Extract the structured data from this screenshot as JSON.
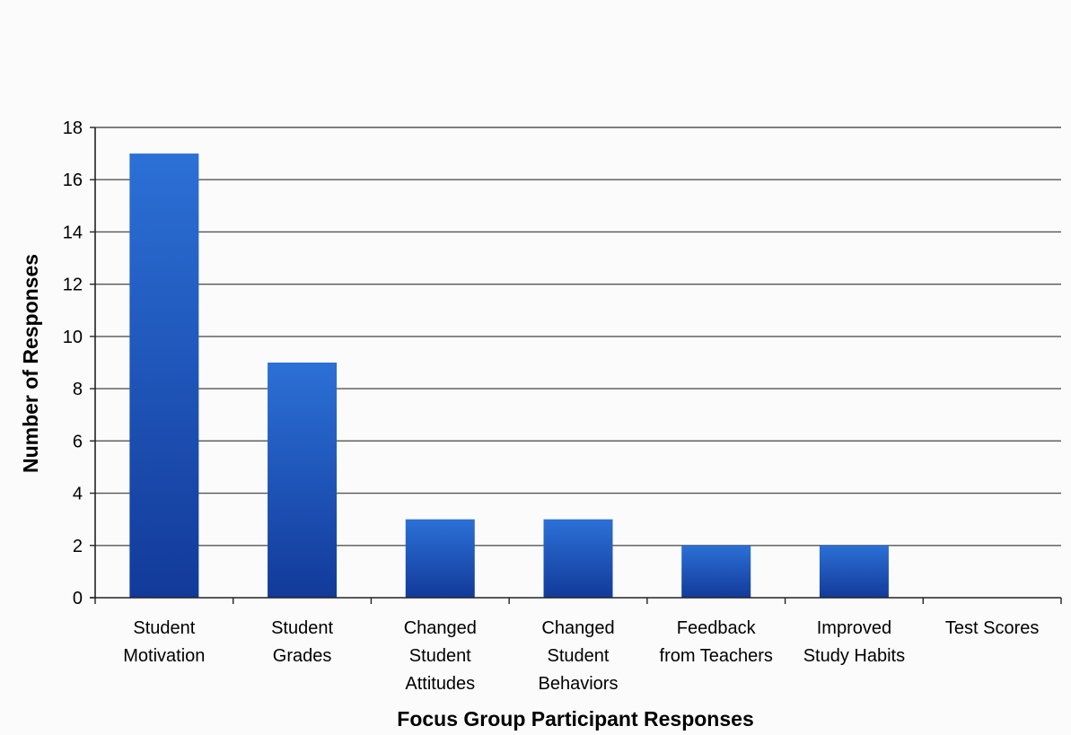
{
  "chart_data": {
    "type": "bar",
    "title": "",
    "xlabel": "Focus Group Participant Responses",
    "ylabel": "Number of Responses",
    "categories": [
      [
        "Student",
        "Motivation"
      ],
      [
        "Student",
        "Grades"
      ],
      [
        "Changed",
        "Student",
        "Attitudes"
      ],
      [
        "Changed",
        "Student",
        "Behaviors"
      ],
      [
        "Feedback",
        "from Teachers"
      ],
      [
        "Improved",
        "Study Habits"
      ],
      [
        "Test Scores"
      ]
    ],
    "values": [
      17,
      9,
      3,
      3,
      2,
      2,
      0
    ],
    "ylim": [
      0,
      18
    ],
    "yticks": [
      0,
      2,
      4,
      6,
      8,
      10,
      12,
      14,
      16,
      18
    ],
    "grid": true,
    "legend": "none",
    "colors": {
      "bar_top": "#2c70d6",
      "bar_bottom": "#123a9a",
      "grid": "#555555",
      "text": "#000000"
    }
  }
}
